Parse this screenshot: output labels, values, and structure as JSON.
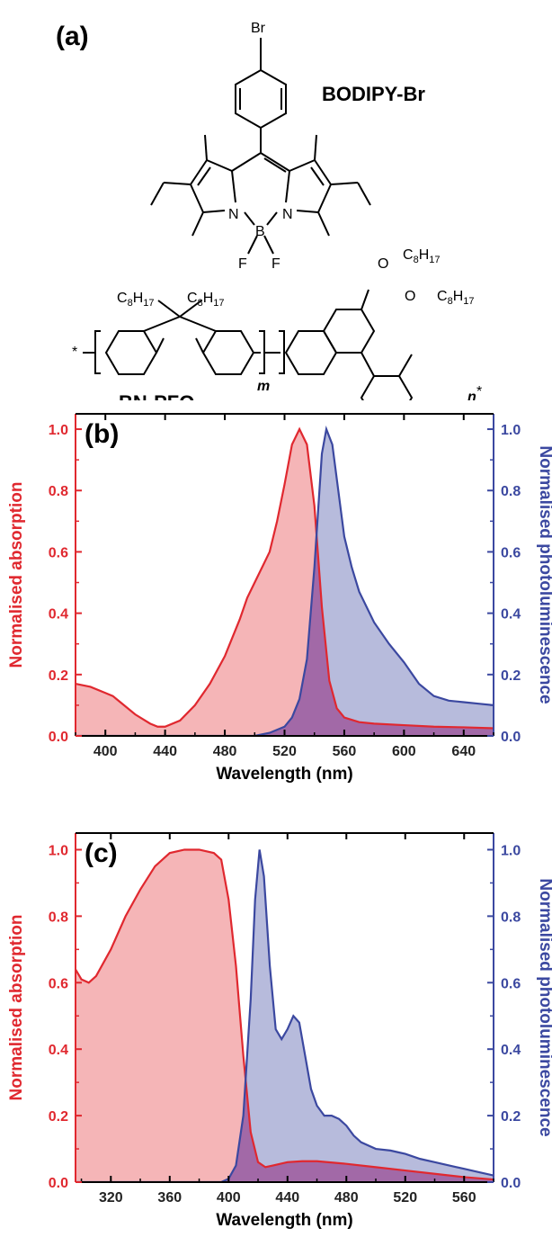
{
  "colors": {
    "absorption": "#e0282f",
    "absorption_fill": "#f5b5b7",
    "emission": "#3b48a0",
    "emission_fill": "#b7bbdc",
    "overlap_fill": "#a269a7"
  },
  "panel_a": {
    "letter": "(a)",
    "molecule1": {
      "name": "BODIPY-Br",
      "labels": [
        "Br",
        "N",
        "B",
        "N",
        "F",
        "F"
      ]
    },
    "molecule2": {
      "name": "BN-PFO",
      "labels": [
        "C8H17",
        "C8H17",
        "O",
        "C8H17",
        "O",
        "C8H17",
        "m",
        "n",
        "*",
        "*"
      ]
    }
  },
  "chart_data": [
    {
      "type": "area",
      "panel_label": "(b)",
      "xlabel": "Wavelength (nm)",
      "ylabel_left": "Normalised absorption",
      "ylabel_right": "Normalised photoluminescence",
      "xlim": [
        380,
        660
      ],
      "ylim": [
        0,
        1.05
      ],
      "xticks": [
        "400",
        "440",
        "480",
        "520",
        "560",
        "600",
        "640"
      ],
      "yticks": [
        "0.0",
        "0.2",
        "0.4",
        "0.6",
        "0.8",
        "1.0"
      ],
      "series": [
        {
          "role": "absorption",
          "x": [
            380,
            390,
            400,
            405,
            410,
            420,
            430,
            435,
            440,
            450,
            460,
            470,
            480,
            490,
            495,
            500,
            505,
            510,
            515,
            520,
            525,
            530,
            535,
            540,
            545,
            550,
            555,
            560,
            570,
            580,
            600,
            620,
            640,
            660
          ],
          "y": [
            0.17,
            0.16,
            0.14,
            0.13,
            0.11,
            0.07,
            0.04,
            0.03,
            0.03,
            0.05,
            0.1,
            0.17,
            0.26,
            0.38,
            0.45,
            0.5,
            0.55,
            0.6,
            0.7,
            0.82,
            0.95,
            1.0,
            0.95,
            0.75,
            0.42,
            0.18,
            0.09,
            0.06,
            0.045,
            0.04,
            0.035,
            0.03,
            0.028,
            0.025
          ]
        },
        {
          "role": "photoluminescence",
          "x": [
            380,
            500,
            510,
            520,
            525,
            530,
            535,
            540,
            545,
            548,
            552,
            556,
            560,
            565,
            570,
            580,
            590,
            600,
            610,
            620,
            630,
            640,
            650,
            660
          ],
          "y": [
            0.0,
            0.0,
            0.01,
            0.03,
            0.06,
            0.12,
            0.25,
            0.55,
            0.92,
            1.0,
            0.95,
            0.8,
            0.65,
            0.55,
            0.47,
            0.37,
            0.3,
            0.24,
            0.17,
            0.13,
            0.115,
            0.11,
            0.105,
            0.1
          ]
        }
      ]
    },
    {
      "type": "area",
      "panel_label": "(c)",
      "xlabel": "Wavelength (nm)",
      "ylabel_left": "Normalised absorption",
      "ylabel_right": "Normalised photoluminescence",
      "xlim": [
        296,
        580
      ],
      "ylim": [
        0,
        1.05
      ],
      "xticks": [
        "320",
        "360",
        "400",
        "440",
        "480",
        "520",
        "560"
      ],
      "yticks": [
        "0.0",
        "0.2",
        "0.4",
        "0.6",
        "0.8",
        "1.0"
      ],
      "series": [
        {
          "role": "absorption",
          "x": [
            296,
            300,
            305,
            310,
            320,
            330,
            340,
            350,
            360,
            370,
            380,
            390,
            395,
            400,
            405,
            410,
            415,
            420,
            425,
            430,
            440,
            450,
            460,
            480,
            500,
            520,
            540,
            560,
            580
          ],
          "y": [
            0.64,
            0.61,
            0.6,
            0.62,
            0.7,
            0.8,
            0.88,
            0.95,
            0.99,
            1.0,
            1.0,
            0.99,
            0.97,
            0.85,
            0.65,
            0.38,
            0.15,
            0.06,
            0.045,
            0.05,
            0.06,
            0.063,
            0.063,
            0.055,
            0.045,
            0.035,
            0.025,
            0.015,
            0.008
          ]
        },
        {
          "role": "photoluminescence",
          "x": [
            296,
            395,
            400,
            405,
            410,
            415,
            418,
            421,
            424,
            428,
            432,
            436,
            440,
            444,
            448,
            452,
            456,
            460,
            465,
            470,
            475,
            480,
            485,
            490,
            500,
            510,
            515,
            520,
            530,
            540,
            550,
            560,
            570,
            580
          ],
          "y": [
            0.0,
            0.0,
            0.01,
            0.05,
            0.2,
            0.55,
            0.85,
            1.0,
            0.92,
            0.65,
            0.46,
            0.43,
            0.46,
            0.5,
            0.48,
            0.38,
            0.28,
            0.23,
            0.2,
            0.2,
            0.19,
            0.17,
            0.14,
            0.12,
            0.1,
            0.095,
            0.09,
            0.085,
            0.07,
            0.06,
            0.05,
            0.04,
            0.03,
            0.02
          ]
        }
      ]
    }
  ]
}
